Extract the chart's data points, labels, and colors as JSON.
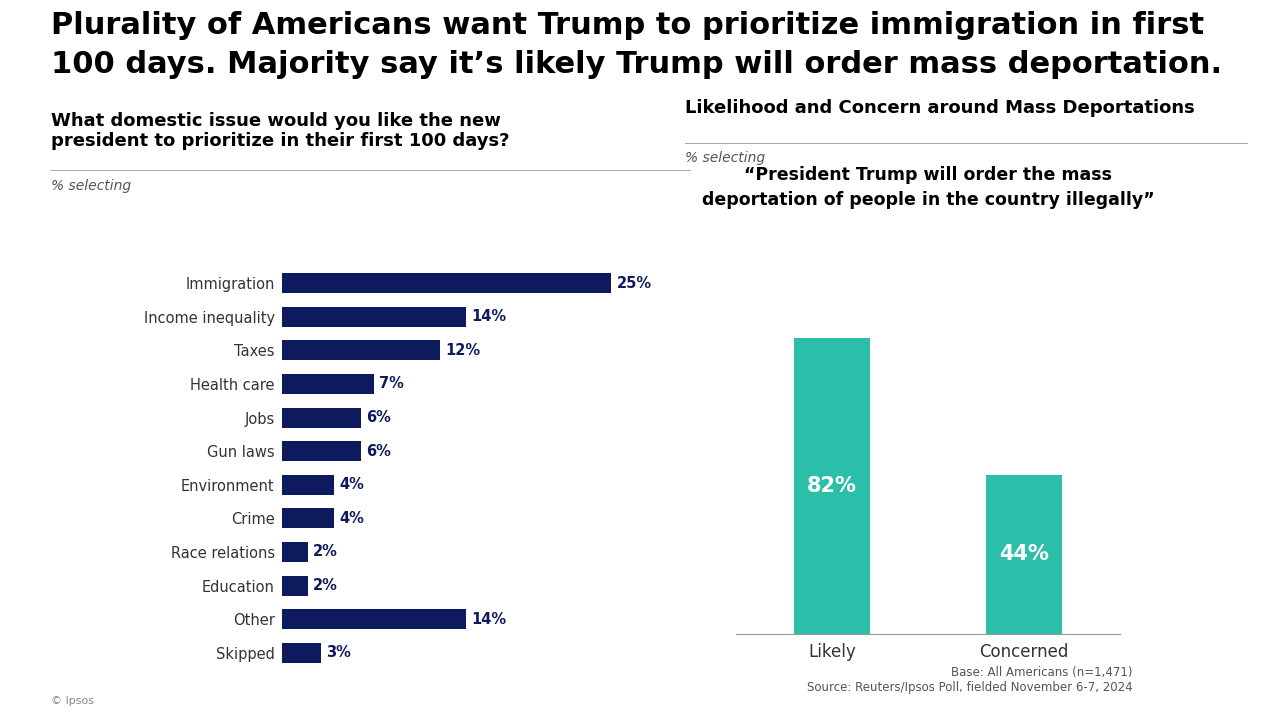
{
  "title_line1": "Plurality of Americans want Trump to prioritize immigration in first",
  "title_line2": "100 days. Majority say it’s likely Trump will order mass deportation.",
  "title_fontsize": 22,
  "background_color": "#ffffff",
  "left_chart": {
    "title": "What domestic issue would you like the new\npresident to prioritize in their first 100 days?",
    "subtitle": "% selecting",
    "categories": [
      "Immigration",
      "Income inequality",
      "Taxes",
      "Health care",
      "Jobs",
      "Gun laws",
      "Environment",
      "Crime",
      "Race relations",
      "Education",
      "Other",
      "Skipped"
    ],
    "values": [
      25,
      14,
      12,
      7,
      6,
      6,
      4,
      4,
      2,
      2,
      14,
      3
    ],
    "bar_color": "#0d1b5e",
    "label_color": "#0d1b5e",
    "title_fontsize": 13,
    "subtitle_fontsize": 10
  },
  "right_chart": {
    "title": "Likelihood and Concern around Mass Deportations",
    "subtitle": "% selecting",
    "quote": "“President Trump will order the mass\ndeportation of people in the country illegally”",
    "categories": [
      "Likely",
      "Concerned"
    ],
    "values": [
      82,
      44
    ],
    "bar_color": "#2bbfaa",
    "label_color": "#ffffff",
    "title_fontsize": 13,
    "subtitle_fontsize": 10
  },
  "footer_text": "Base: All Americans (n=1,471)\nSource: Reuters/Ipsos Poll, fielded November 6-7, 2024",
  "ipsos_credit": "© Ipsos",
  "divider_color": "#aaaaaa",
  "text_color": "#333333"
}
